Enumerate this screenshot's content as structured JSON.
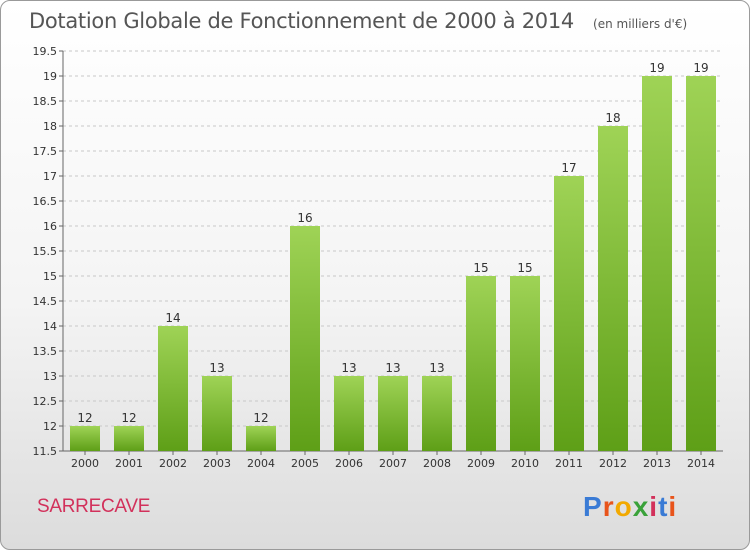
{
  "title": "Dotation Globale de Fonctionnement de 2000 à 2014",
  "subtitle": "(en milliers d'€)",
  "commune": "SARRECAVE",
  "logo": {
    "text": "Proxiti",
    "letters": [
      {
        "char": "P",
        "color": "#3a7bd5"
      },
      {
        "char": "r",
        "color": "#e8541b"
      },
      {
        "char": "o",
        "color": "#f2a900"
      },
      {
        "char": "x",
        "color": "#3aa23a"
      },
      {
        "char": "i",
        "color": "#d2315b"
      },
      {
        "char": "t",
        "color": "#3a7bd5"
      },
      {
        "char": "i",
        "color": "#e8541b"
      }
    ]
  },
  "colors": {
    "bar_top": "#9fd356",
    "bar_bottom": "#5e9f17",
    "grid": "#c8c8c8",
    "axis_text": "#333333",
    "commune": "#d2315b"
  },
  "chart_data": {
    "type": "bar",
    "categories": [
      "2000",
      "2001",
      "2002",
      "2003",
      "2004",
      "2005",
      "2006",
      "2007",
      "2008",
      "2009",
      "2010",
      "2011",
      "2012",
      "2013",
      "2014"
    ],
    "values": [
      12,
      12,
      14,
      13,
      12,
      16,
      13,
      13,
      13,
      15,
      15,
      17,
      18,
      19,
      19
    ],
    "data_labels": [
      "12",
      "12",
      "14",
      "13",
      "12",
      "16",
      "13",
      "13",
      "13",
      "15",
      "15",
      "17",
      "18",
      "19",
      "19"
    ],
    "ylim": [
      11.5,
      19.5
    ],
    "yticks": [
      11.5,
      12,
      12.5,
      13,
      13.5,
      14,
      14.5,
      15,
      15.5,
      16,
      16.5,
      17,
      17.5,
      18,
      18.5,
      19,
      19.5
    ],
    "ytick_labels": [
      "11.5",
      "12",
      "12.5",
      "13",
      "13.5",
      "14",
      "14.5",
      "15",
      "15.5",
      "16",
      "16.5",
      "17",
      "17.5",
      "18",
      "18.5",
      "19",
      "19.5"
    ],
    "grid": true,
    "title": "Dotation Globale de Fonctionnement de 2000 à 2014",
    "subtitle": "(en milliers d'€)",
    "xlabel": "",
    "ylabel": ""
  }
}
